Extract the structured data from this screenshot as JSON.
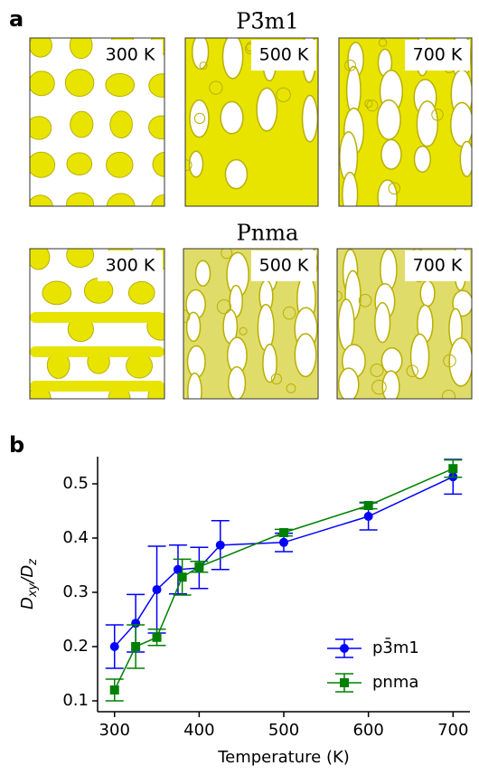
{
  "panel_a": {
    "label": "a",
    "rows": [
      {
        "title": "P3̄m1",
        "images": [
          {
            "label": "300 K"
          },
          {
            "label": "500 K"
          },
          {
            "label": "700 K"
          }
        ]
      },
      {
        "title": "Pnma",
        "images": [
          {
            "label": "300 K"
          },
          {
            "label": "500 K"
          },
          {
            "label": "700 K"
          }
        ]
      }
    ]
  },
  "chart_data": {
    "type": "line",
    "panel_label": "b",
    "x_label": "Temperature (K)",
    "y_label": [
      "D",
      "xy",
      "/D",
      "z"
    ],
    "xlim": [
      280,
      720
    ],
    "xticks": [
      300,
      400,
      500,
      600,
      700
    ],
    "ylim": [
      0.08,
      0.55
    ],
    "yticks": [
      0.1,
      0.2,
      0.3,
      0.4,
      0.5
    ],
    "legend": "lower right",
    "series": [
      {
        "name": "p3̄m1",
        "color": "#0000ff",
        "marker": "circle",
        "x": [
          300,
          325,
          350,
          375,
          400,
          425,
          500,
          600,
          700
        ],
        "values": [
          0.2,
          0.243,
          0.305,
          0.342,
          0.345,
          0.387,
          0.392,
          0.44,
          0.513
        ],
        "errors": [
          0.04,
          0.053,
          0.08,
          0.045,
          0.038,
          0.045,
          0.017,
          0.025,
          0.032
        ]
      },
      {
        "name": "pnma",
        "color": "#008000",
        "marker": "square",
        "x": [
          300,
          325,
          350,
          380,
          400,
          500,
          600,
          700
        ],
        "values": [
          0.12,
          0.2,
          0.217,
          0.328,
          0.347,
          0.41,
          0.46,
          0.528
        ],
        "errors": [
          0.02,
          0.04,
          0.015,
          0.033,
          0.01,
          0.006,
          0.006,
          0.016
        ]
      }
    ]
  }
}
